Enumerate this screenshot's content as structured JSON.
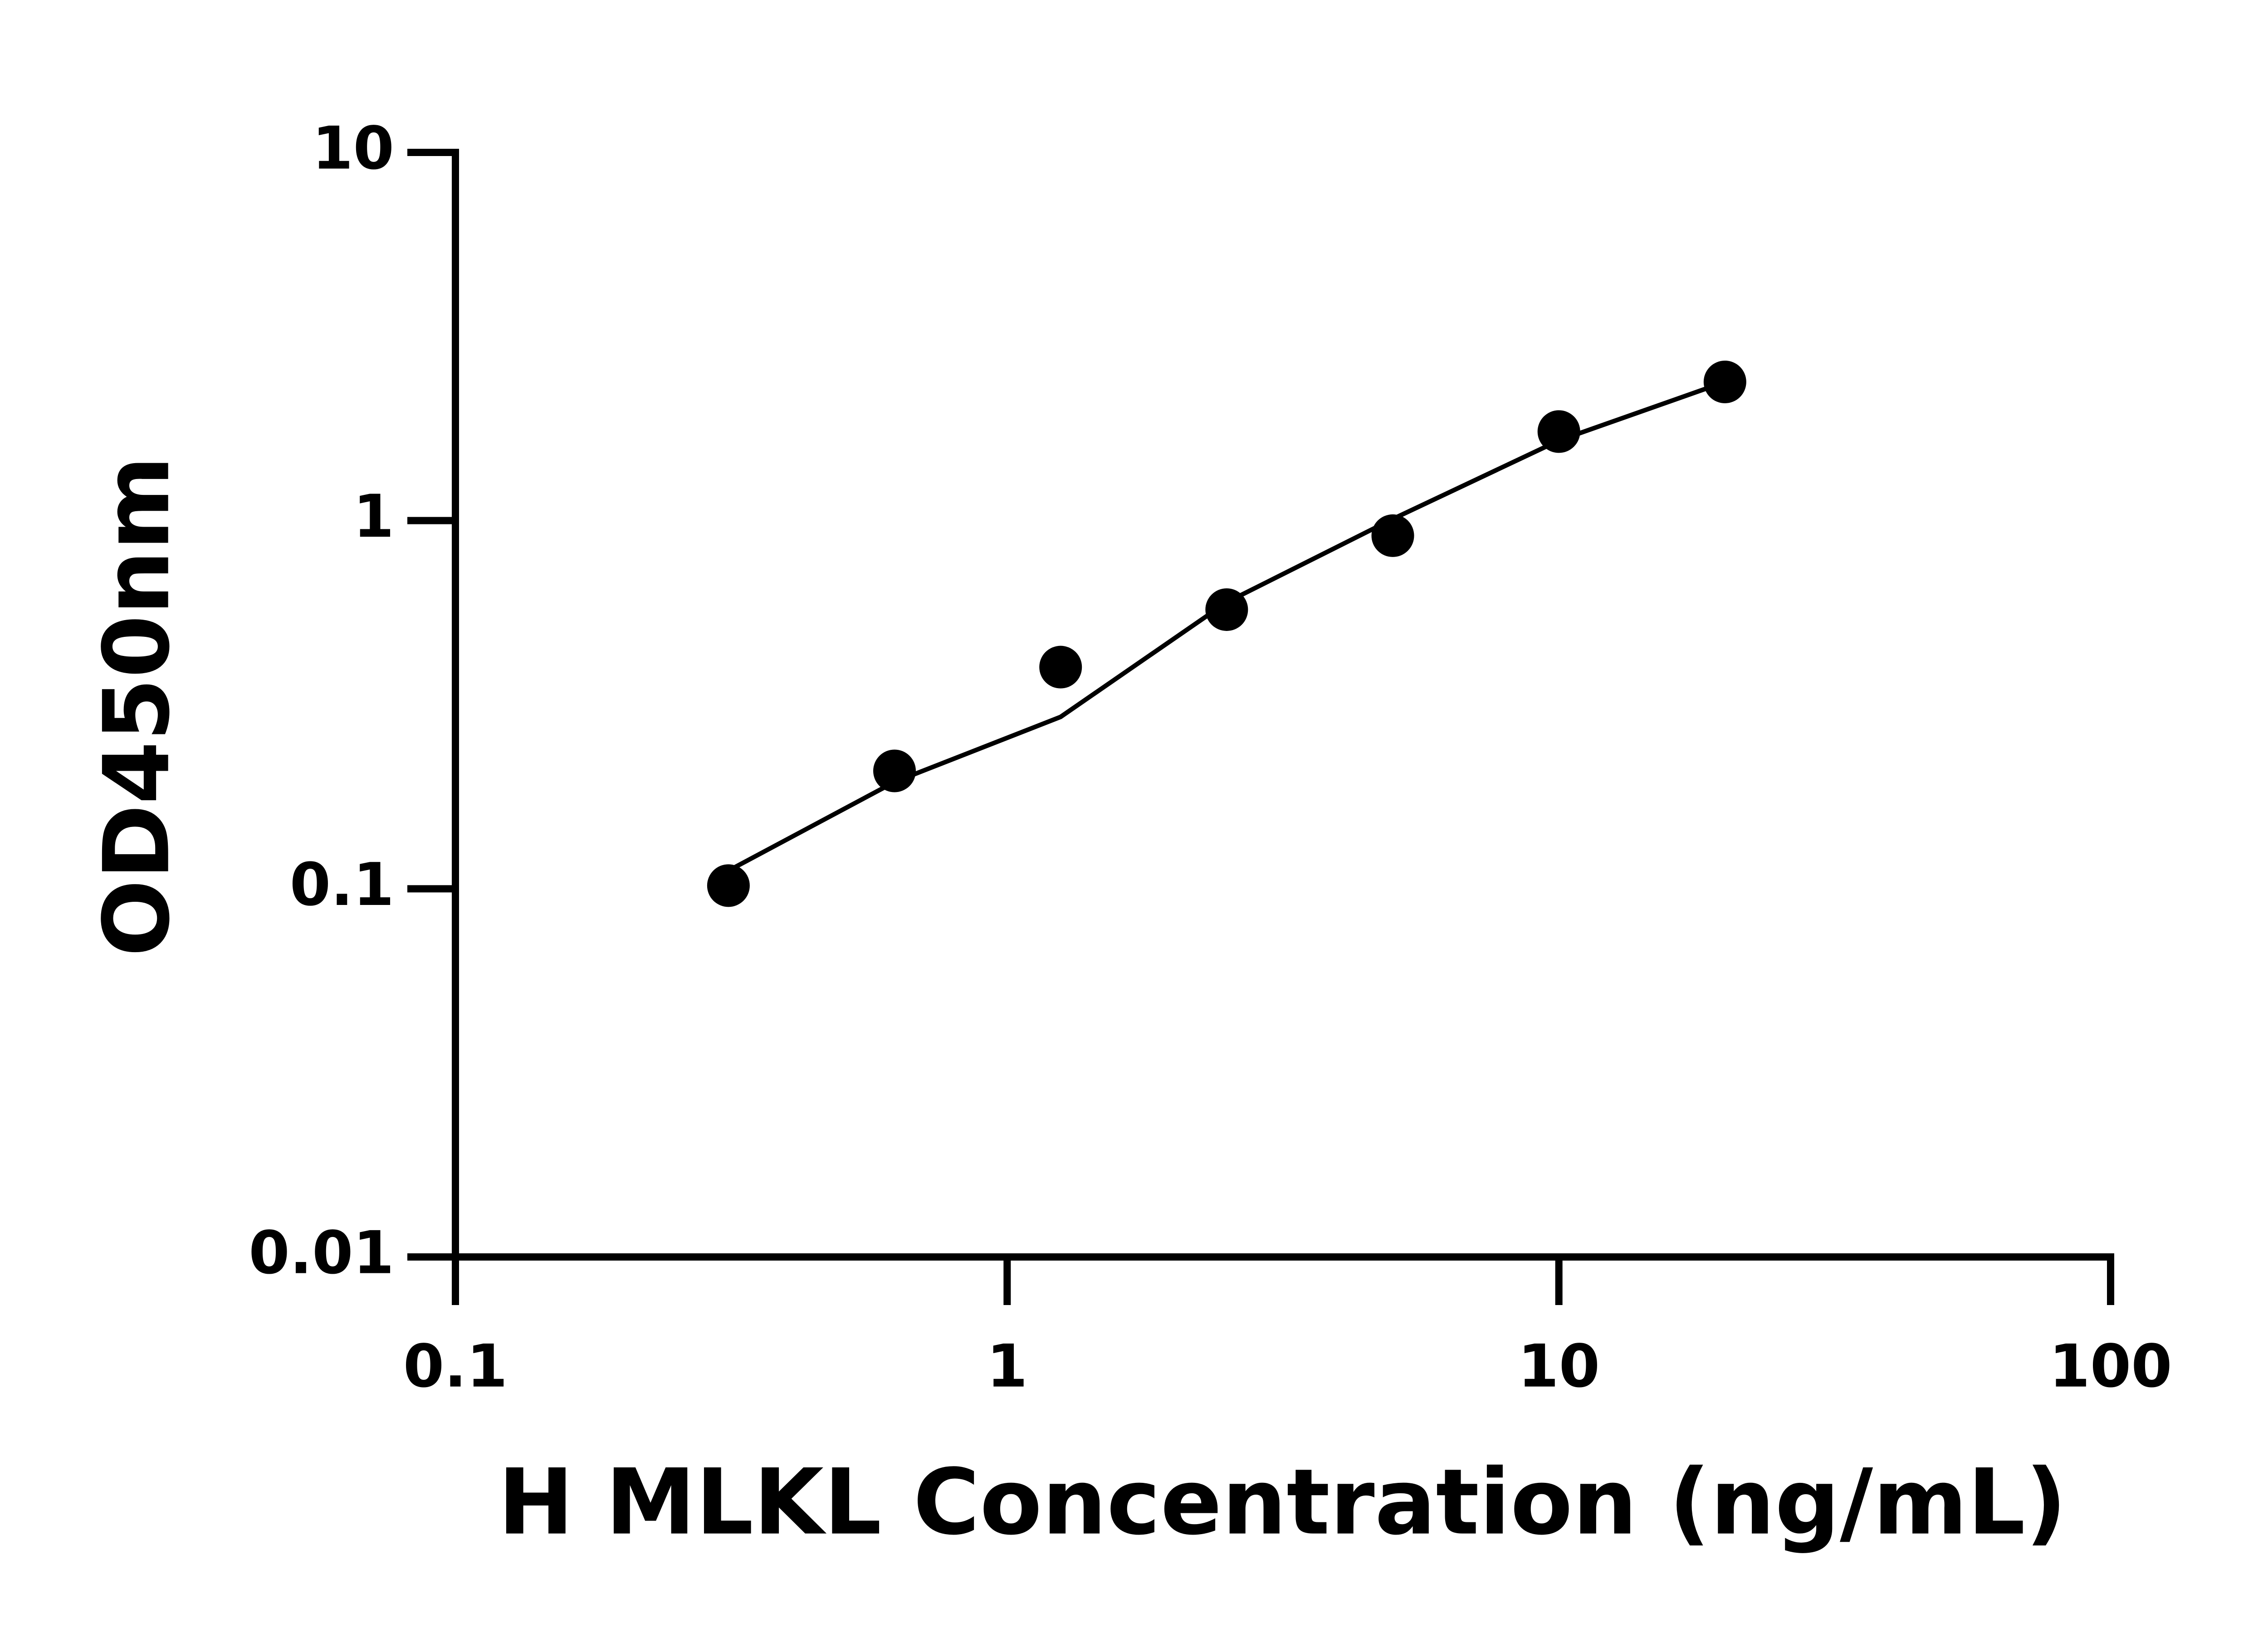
{
  "chart_data": {
    "type": "scatter",
    "x_label": "H MLKL Concentration (ng/mL)",
    "y_label": "OD450nm",
    "x": [
      0.3125,
      0.625,
      1.25,
      2.5,
      5,
      10,
      20
    ],
    "values": [
      0.102,
      0.209,
      0.4,
      0.573,
      0.91,
      1.745,
      2.38
    ],
    "fit": {
      "x": [
        0.3125,
        0.625,
        1.25,
        2.5,
        5,
        10,
        20
      ],
      "values": [
        0.112,
        0.195,
        0.293,
        0.6,
        1.01,
        1.65,
        2.38
      ]
    },
    "color": "#000000",
    "xscale": "log",
    "yscale": "log",
    "xlim": [
      0.1,
      100
    ],
    "ylim": [
      0.01,
      10
    ],
    "xticks": [
      0.1,
      1,
      10,
      100
    ],
    "yticks": [
      0.01,
      0.1,
      1,
      10
    ]
  }
}
